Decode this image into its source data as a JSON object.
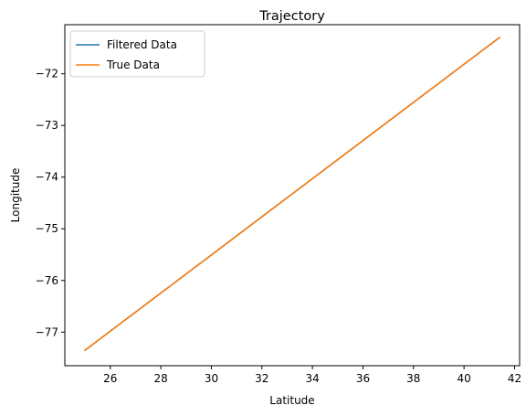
{
  "chart_data": {
    "type": "line",
    "title": "Trajectory",
    "xlabel": "Latitude",
    "ylabel": "Longitude",
    "xlim": [
      24.2,
      42.2
    ],
    "ylim": [
      -77.65,
      -71.05
    ],
    "xticks": [
      26,
      28,
      30,
      32,
      34,
      36,
      38,
      40,
      42
    ],
    "yticks": [
      -77,
      -76,
      -75,
      -74,
      -73,
      -72
    ],
    "legend_position": "upper-left",
    "grid": false,
    "series": [
      {
        "name": "Filtered Data",
        "color": "#1f77b4",
        "x": [
          25.0,
          41.4
        ],
        "y": [
          -77.35,
          -71.3
        ]
      },
      {
        "name": "True Data",
        "color": "#ff7f0e",
        "x": [
          25.0,
          41.4
        ],
        "y": [
          -77.35,
          -71.3
        ]
      }
    ]
  }
}
